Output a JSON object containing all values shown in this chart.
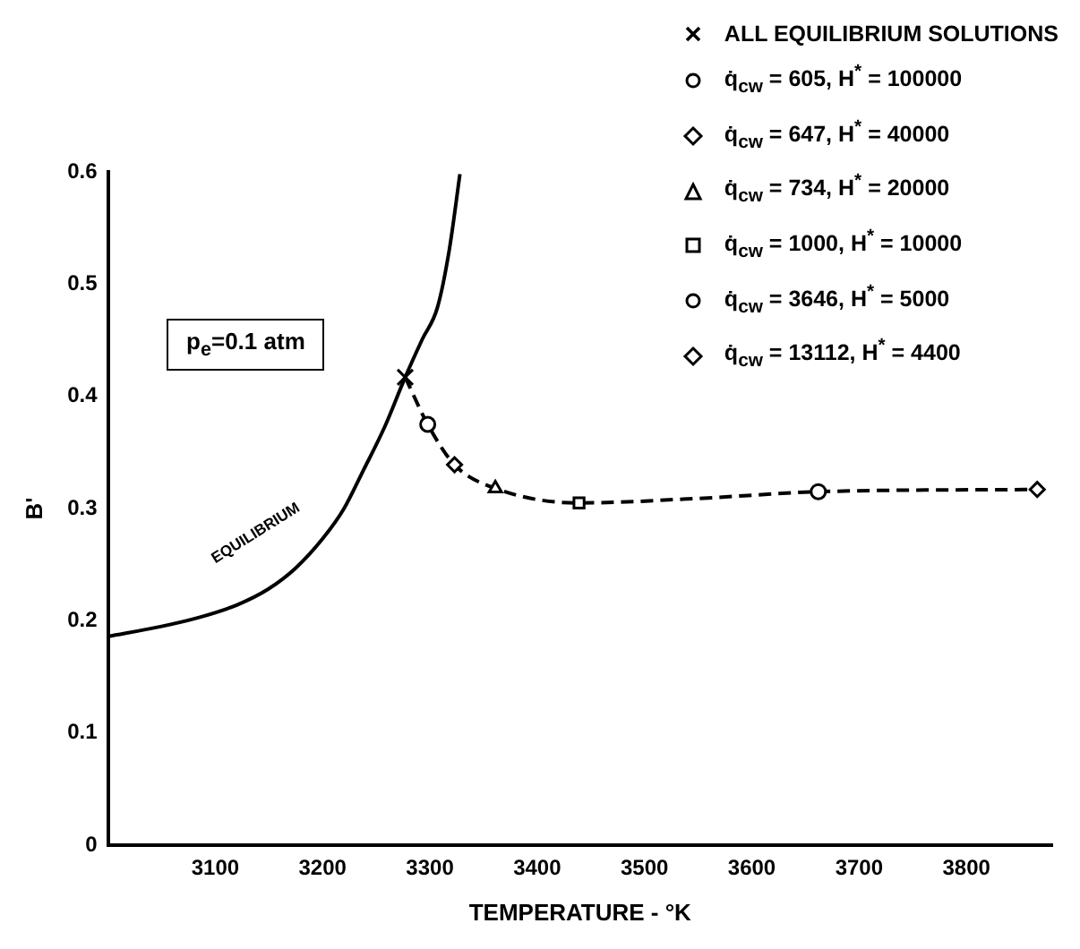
{
  "chart_data": {
    "type": "scatter",
    "xlabel": "TEMPERATURE - °K",
    "ylabel": "B'",
    "xlim": [
      3000,
      3880
    ],
    "xticks": [
      3100,
      3200,
      3300,
      3400,
      3500,
      3600,
      3700,
      3800
    ],
    "ylim": [
      0,
      0.6
    ],
    "yticks": [
      0,
      0.1,
      0.2,
      0.3,
      0.4,
      0.5,
      0.6
    ],
    "grid": false,
    "legend": "top right",
    "annotations": [
      "p$_{e}$=0.1 atm",
      "EQUILIBRIUM"
    ],
    "series": [
      {
        "type": "line",
        "color": "#000000",
        "marker": "none",
        "line_style": "solid",
        "x": [
          3000,
          3050,
          3085,
          3120,
          3149,
          3175,
          3200,
          3220,
          3238,
          3258,
          3277,
          3293,
          3307,
          3318,
          3328
        ],
        "values": [
          0.186,
          0.195,
          0.203,
          0.214,
          0.228,
          0.247,
          0.273,
          0.3,
          0.334,
          0.373,
          0.417,
          0.451,
          0.479,
          0.53,
          0.598
        ]
      },
      {
        "type": "line",
        "color": "#000000",
        "marker": "none",
        "line_style": "dashed",
        "x": [
          3277,
          3298,
          3323,
          3361,
          3439,
          3550,
          3662,
          3866
        ],
        "values": [
          0.417,
          0.375,
          0.339,
          0.318,
          0.305,
          0.309,
          0.315,
          0.317
        ]
      },
      {
        "name": "ALL EQUILIBRIUM SOLUTIONS",
        "color": "#000000",
        "marker": "cross",
        "x": [
          3277
        ],
        "values": [
          0.417
        ]
      },
      {
        "name": "q̇$_{cw}$ = 605, H$^{*}$ = 100000",
        "color": "#000000",
        "marker": "circle",
        "x": [
          3298
        ],
        "values": [
          0.375
        ]
      },
      {
        "name": "q̇$_{cw}$ = 647, H$^{*}$ = 40000",
        "color": "#000000",
        "marker": "diamond",
        "x": [
          3323
        ],
        "values": [
          0.339
        ]
      },
      {
        "name": "q̇$_{cw}$ = 734, H$^{*}$ = 20000",
        "color": "#000000",
        "marker": "triangle",
        "x": [
          3361
        ],
        "values": [
          0.318
        ]
      },
      {
        "name": "q̇$_{cw}$ = 1000, H$^{*}$ = 10000",
        "color": "#000000",
        "marker": "square",
        "x": [
          3439
        ],
        "values": [
          0.305
        ]
      },
      {
        "name": "q̇$_{cw}$ = 3646, H$^{*}$ = 5000",
        "color": "#000000",
        "marker": "circle",
        "x": [
          3662
        ],
        "values": [
          0.315
        ]
      },
      {
        "name": "q̇$_{cw}$ = 13112, H$^{*}$ = 4400",
        "color": "#000000",
        "marker": "diamond",
        "x": [
          3866
        ],
        "values": [
          0.317
        ]
      }
    ]
  }
}
